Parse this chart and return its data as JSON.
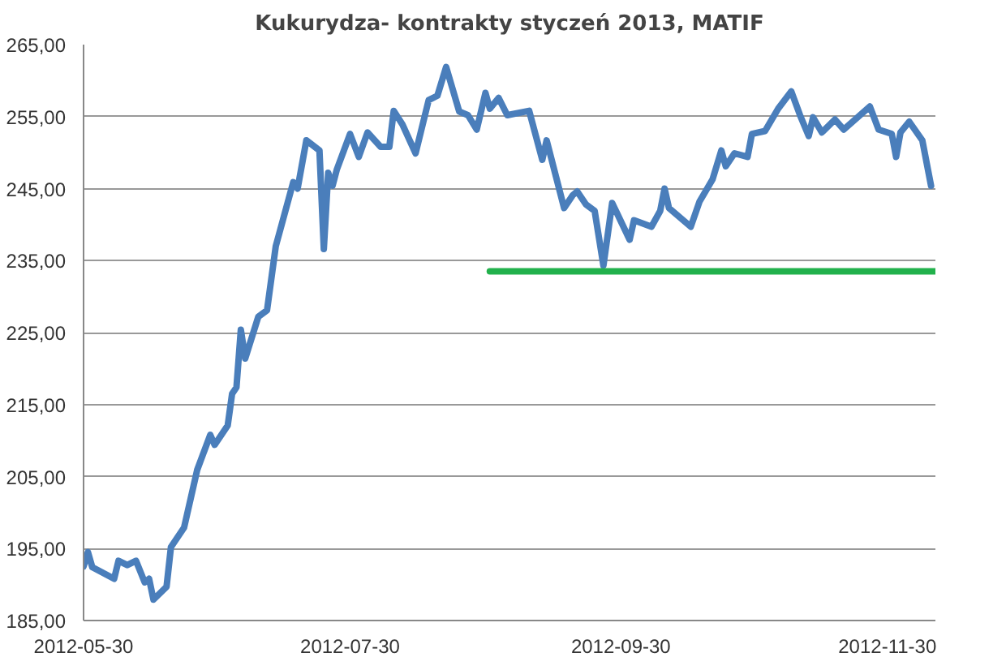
{
  "chart_data": {
    "type": "line",
    "title": "Kukurydza- kontrakty styczeń 2013, MATIF",
    "x": [
      "2012-05-30",
      "2012-05-31",
      "2012-06-01",
      "2012-06-06",
      "2012-06-07",
      "2012-06-09",
      "2012-06-11",
      "2012-06-13",
      "2012-06-14",
      "2012-06-15",
      "2012-06-18",
      "2012-06-19",
      "2012-06-22",
      "2012-06-25",
      "2012-06-28",
      "2012-06-29",
      "2012-07-02",
      "2012-07-03",
      "2012-07-04",
      "2012-07-05",
      "2012-07-06",
      "2012-07-09",
      "2012-07-11",
      "2012-07-13",
      "2012-07-17",
      "2012-07-18",
      "2012-07-20",
      "2012-07-23",
      "2012-07-24",
      "2012-07-25",
      "2012-07-26",
      "2012-07-27",
      "2012-07-30",
      "2012-08-01",
      "2012-08-03",
      "2012-08-06",
      "2012-08-08",
      "2012-08-09",
      "2012-08-11",
      "2012-08-14",
      "2012-08-17",
      "2012-08-19",
      "2012-08-21",
      "2012-08-24",
      "2012-08-26",
      "2012-08-28",
      "2012-08-30",
      "2012-08-31",
      "2012-09-02",
      "2012-09-04",
      "2012-09-09",
      "2012-09-12",
      "2012-09-13",
      "2012-09-17",
      "2012-09-19",
      "2012-09-20",
      "2012-09-22",
      "2012-09-24",
      "2012-09-26",
      "2012-09-28",
      "2012-10-02",
      "2012-10-03",
      "2012-10-07",
      "2012-10-09",
      "2012-10-10",
      "2012-10-11",
      "2012-10-16",
      "2012-10-18",
      "2012-10-21",
      "2012-10-23",
      "2012-10-24",
      "2012-10-26",
      "2012-10-29",
      "2012-10-30",
      "2012-11-02",
      "2012-11-05",
      "2012-11-08",
      "2012-11-10",
      "2012-11-12",
      "2012-11-13",
      "2012-11-15",
      "2012-11-18",
      "2012-11-20",
      "2012-11-26",
      "2012-11-28",
      "2012-12-01",
      "2012-12-02",
      "2012-12-03",
      "2012-12-05",
      "2012-12-08",
      "2012-12-10"
    ],
    "series": [
      {
        "color": "#4a7ebb",
        "values": [
          192.5,
          194.5,
          192.4,
          190.8,
          193.3,
          192.7,
          193.3,
          190.3,
          190.8,
          187.9,
          189.7,
          195.2,
          197.9,
          205.9,
          210.8,
          209.4,
          212.1,
          216.5,
          217.4,
          225.4,
          221.4,
          227.2,
          228.1,
          237.0,
          245.9,
          245.0,
          251.7,
          250.3,
          236.6,
          247.2,
          245.4,
          247.7,
          252.6,
          249.4,
          252.8,
          250.8,
          250.8,
          255.8,
          253.9,
          249.9,
          257.3,
          257.9,
          261.9,
          255.7,
          255.2,
          253.2,
          258.3,
          256.1,
          257.6,
          255.2,
          255.8,
          249.0,
          251.7,
          242.3,
          244.1,
          244.6,
          242.8,
          241.9,
          234.3,
          243.0,
          237.9,
          240.6,
          239.7,
          241.9,
          245.0,
          242.3,
          239.7,
          243.2,
          246.3,
          250.3,
          248.1,
          249.9,
          249.4,
          252.6,
          253.0,
          256.1,
          258.5,
          255.2,
          252.3,
          254.9,
          252.8,
          254.6,
          253.2,
          256.4,
          253.2,
          252.6,
          249.4,
          252.8,
          254.3,
          251.7,
          245.4
        ]
      },
      {
        "type": "line",
        "color": "#22b14c",
        "x": [
          "2012-08-31",
          "2012-12-11"
        ],
        "values": [
          233.5,
          233.5
        ]
      }
    ],
    "xlim": [
      "2012-05-30",
      "2012-12-11"
    ],
    "xticks": [
      "2012-05-30",
      "2012-07-30",
      "2012-09-30",
      "2012-11-30"
    ],
    "ylim": [
      185,
      265
    ],
    "yticks": [
      {
        "value": 185,
        "label": "185,00"
      },
      {
        "value": 195,
        "label": "195,00"
      },
      {
        "value": 205,
        "label": "205,00"
      },
      {
        "value": 215,
        "label": "215,00"
      },
      {
        "value": 225,
        "label": "225,00"
      },
      {
        "value": 235,
        "label": "235,00"
      },
      {
        "value": 245,
        "label": "245,00"
      },
      {
        "value": 255,
        "label": "255,00"
      },
      {
        "value": 265,
        "label": "265,00"
      }
    ],
    "grid": "y",
    "line_style": "solid",
    "marker": "none"
  }
}
